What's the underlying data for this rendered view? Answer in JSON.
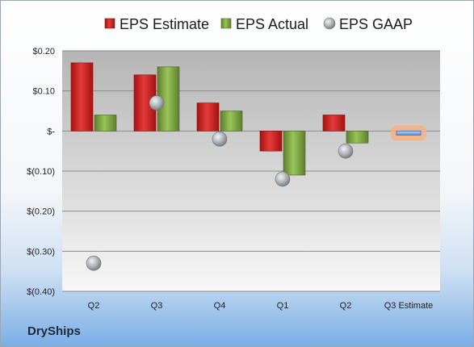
{
  "company": "DryShips",
  "chart_data": {
    "type": "bar",
    "categories": [
      "Q2",
      "Q3",
      "Q4",
      "Q1",
      "Q2",
      "Q3 Estimate"
    ],
    "series": [
      {
        "name": "EPS Estimate",
        "color": "#d42a2a",
        "values": [
          0.17,
          0.14,
          0.07,
          -0.05,
          0.04,
          null
        ]
      },
      {
        "name": "EPS Actual",
        "color": "#8cb34a",
        "values": [
          0.04,
          0.16,
          0.05,
          -0.11,
          -0.03,
          null
        ]
      },
      {
        "name": "EPS GAAP",
        "color": "#a9aeb5",
        "values": [
          -0.33,
          0.07,
          -0.02,
          -0.12,
          -0.05,
          null
        ]
      }
    ],
    "next_estimate": {
      "category": "Q3 Estimate",
      "value": -0.01,
      "color": "#7fb0e6",
      "highlight": "#f4b183"
    },
    "ylim": [
      -0.4,
      0.2
    ],
    "yticks": [
      0.2,
      0.1,
      0.0,
      -0.1,
      -0.2,
      -0.3,
      -0.4
    ],
    "ytick_labels": [
      "$0.20",
      "$0.10",
      "$-",
      "$(0.10)",
      "$(0.20)",
      "$(0.30)",
      "$(0.40)"
    ],
    "legend_position": "top",
    "grid": true
  }
}
